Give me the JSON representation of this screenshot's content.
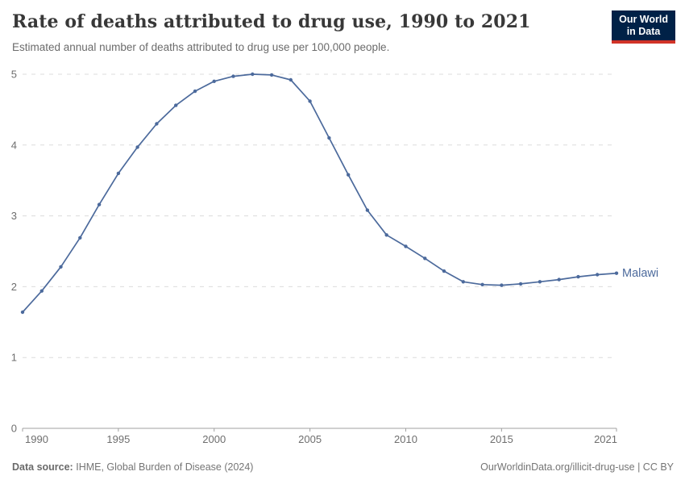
{
  "header": {
    "title": "Rate of deaths attributed to drug use, 1990 to 2021",
    "subtitle": "Estimated annual number of deaths attributed to drug use per 100,000 people.",
    "logo_line1": "Our World",
    "logo_line2": "in Data"
  },
  "chart_data": {
    "type": "line",
    "title": "Rate of deaths attributed to drug use, 1990 to 2021",
    "xlabel": "",
    "ylabel": "",
    "xlim": [
      1990,
      2021
    ],
    "ylim": [
      0,
      5
    ],
    "x_ticks": [
      1990,
      1995,
      2000,
      2005,
      2010,
      2015,
      2021
    ],
    "y_ticks": [
      0,
      1,
      2,
      3,
      4,
      5
    ],
    "grid": "horizontal-dashed",
    "legend_position": "end-of-line-label",
    "x": [
      1990,
      1991,
      1992,
      1993,
      1994,
      1995,
      1996,
      1997,
      1998,
      1999,
      2000,
      2001,
      2002,
      2003,
      2004,
      2005,
      2006,
      2007,
      2008,
      2009,
      2010,
      2011,
      2012,
      2013,
      2014,
      2015,
      2016,
      2017,
      2018,
      2019,
      2020,
      2021
    ],
    "series": [
      {
        "name": "Malawi",
        "color": "#4c6a9c",
        "values": [
          1.64,
          1.94,
          2.28,
          2.69,
          3.16,
          3.6,
          3.97,
          4.3,
          4.56,
          4.76,
          4.9,
          4.97,
          5.0,
          4.99,
          4.92,
          4.62,
          4.1,
          3.58,
          3.08,
          2.73,
          2.57,
          2.4,
          2.22,
          2.07,
          2.03,
          2.02,
          2.04,
          2.07,
          2.1,
          2.14,
          2.17,
          2.19
        ]
      }
    ]
  },
  "footer": {
    "source_label": "Data source:",
    "source_value": "IHME, Global Burden of Disease (2024)",
    "credit": "OurWorldinData.org/illicit-drug-use | CC BY"
  },
  "colors": {
    "line": "#4c6a9c",
    "grid": "#dcdcdc",
    "axis": "#a0a0a0",
    "tick_label": "#6e6e6e",
    "logo_bg": "#002147",
    "logo_red": "#d13328"
  }
}
